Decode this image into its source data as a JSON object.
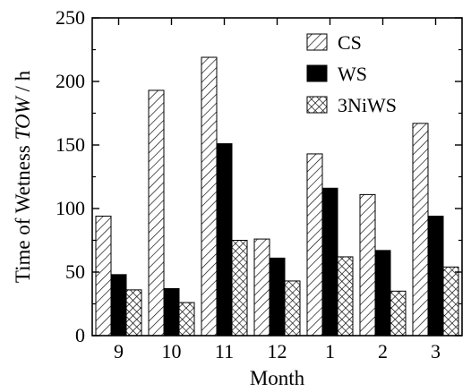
{
  "chart_data": {
    "type": "bar",
    "xlabel": "Month",
    "ylabel_prefix": "Time of Wetness ",
    "ylabel_italic": "TOW",
    "ylabel_suffix": " / h",
    "ylim": [
      0,
      250
    ],
    "yticks": [
      "0",
      "50",
      "100",
      "150",
      "200",
      "250"
    ],
    "categories": [
      "9",
      "10",
      "11",
      "12",
      "1",
      "2",
      "3"
    ],
    "series": [
      {
        "name": "CS",
        "pattern": "diagonal-hatch",
        "values": [
          94,
          193,
          219,
          76,
          143,
          111,
          167
        ]
      },
      {
        "name": "WS",
        "pattern": "solid-black",
        "values": [
          48,
          37,
          151,
          61,
          116,
          67,
          94
        ]
      },
      {
        "name": "3NiWS",
        "pattern": "cross-hatch",
        "values": [
          36,
          26,
          75,
          43,
          62,
          35,
          54
        ]
      }
    ],
    "legend_position": "top-right",
    "grid": false
  }
}
